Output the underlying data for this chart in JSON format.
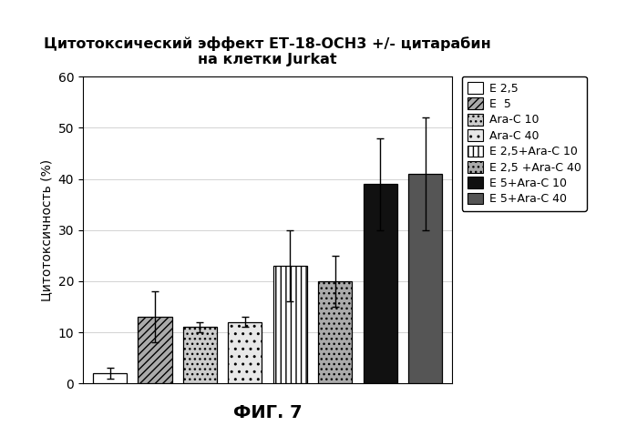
{
  "title_line1": "Цитотоксический эффект ЕТ-18-ОСН3 +/- цитарабин",
  "title_line2": "на клетки Jurkat",
  "ylabel": "Цитотоксичность (%)",
  "xlabel_fig": "ФИГ. 7",
  "ylim": [
    0,
    60
  ],
  "yticks": [
    0,
    10,
    20,
    30,
    40,
    50,
    60
  ],
  "bar_values": [
    2,
    13,
    11,
    12,
    23,
    20,
    39,
    41
  ],
  "bar_errors": [
    1,
    5,
    1,
    1,
    7,
    5,
    9,
    11
  ],
  "legend_labels": [
    "E 2,5",
    "E  5",
    "Ara-C 10",
    "Ara-C 40",
    "E 2,5+Ara-C 10",
    "E 2,5 +Ara-C 40",
    "E 5+Ara-C 10",
    "E 5+Ara-C 40"
  ],
  "bar_positions": [
    1,
    2,
    3,
    4,
    5,
    6,
    7,
    8
  ],
  "bar_width": 0.75,
  "background_color": "#ffffff",
  "plot_bg_color": "#ffffff",
  "title_fontsize": 11.5,
  "axis_fontsize": 10,
  "legend_fontsize": 9
}
